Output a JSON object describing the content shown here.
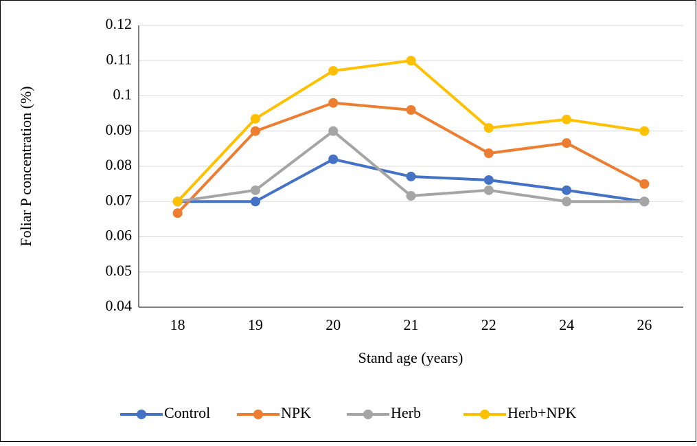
{
  "chart_data": {
    "type": "line",
    "x_label": "Stand age (years)",
    "y_label": "Foliar P concentration (%)",
    "categories": [
      "18",
      "19",
      "20",
      "21",
      "22",
      "24",
      "26"
    ],
    "series": [
      {
        "name": "Control",
        "color": "#4472c4",
        "values": [
          0.07,
          0.07,
          0.082,
          0.0771,
          0.0761,
          0.0732,
          0.07
        ]
      },
      {
        "name": "NPK",
        "color": "#ed7d31",
        "values": [
          0.0667,
          0.09,
          0.098,
          0.096,
          0.0837,
          0.0866,
          0.075
        ]
      },
      {
        "name": "Herb",
        "color": "#a5a5a5",
        "values": [
          0.07,
          0.0732,
          0.09,
          0.0716,
          0.0732,
          0.07,
          0.07
        ]
      },
      {
        "name": "Herb+NPK",
        "color": "#ffc000",
        "values": [
          0.07,
          0.0935,
          0.1071,
          0.11,
          0.0909,
          0.0933,
          0.09
        ]
      }
    ],
    "ylim": [
      0.04,
      0.12
    ],
    "yticks": [
      0.04,
      0.05,
      0.06,
      0.07,
      0.08,
      0.09,
      0.1,
      0.11,
      0.12
    ],
    "grid": true,
    "legend": "bottom"
  }
}
